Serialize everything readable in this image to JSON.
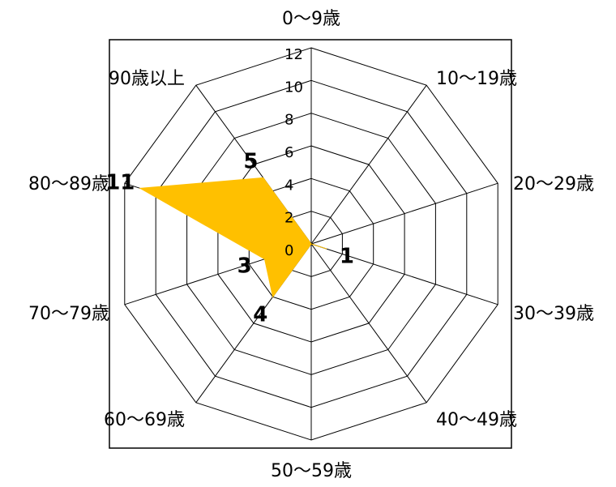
{
  "chart_data": {
    "type": "radar",
    "title": "",
    "categories": [
      "0〜9歳",
      "10〜19歳",
      "20〜29歳",
      "30〜39歳",
      "40〜49歳",
      "50〜59歳",
      "60〜69歳",
      "70〜79歳",
      "80〜89歳",
      "90歳以上"
    ],
    "values": [
      0,
      0,
      0,
      1,
      0,
      0,
      4,
      3,
      11,
      5
    ],
    "data_labels": [
      "",
      "",
      "",
      "1",
      "",
      "",
      "4",
      "3",
      "11",
      "5"
    ],
    "r_ticks": [
      "0",
      "2",
      "4",
      "6",
      "8",
      "10",
      "12"
    ],
    "r_range": [
      0,
      12
    ],
    "grid": true,
    "legend": "none",
    "series_color": "#FFC000"
  }
}
